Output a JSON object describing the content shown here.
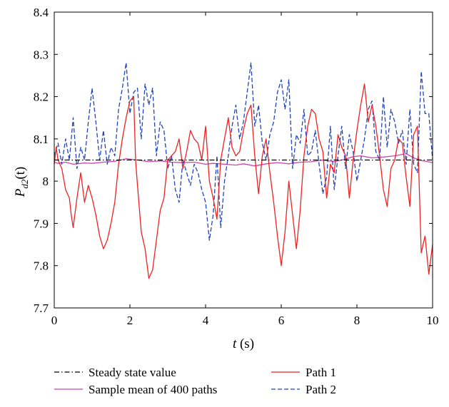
{
  "chart_data": {
    "type": "line",
    "xlabel": {
      "var": "t",
      "unit": " (s)"
    },
    "ylabel": {
      "var": "P",
      "sub": "d2",
      "arg": "(t)"
    },
    "xlim": [
      0,
      10
    ],
    "ylim": [
      7.7,
      8.4
    ],
    "xticks": [
      0,
      2,
      4,
      6,
      8,
      10
    ],
    "xtick_labels": [
      "0",
      "2",
      "4",
      "6",
      "8",
      "10"
    ],
    "yticks": [
      7.7,
      7.8,
      7.9,
      8.0,
      8.1,
      8.2,
      8.3,
      8.4
    ],
    "ytick_labels": [
      "7.7",
      "7.8",
      "7.9",
      "8",
      "8.1",
      "8.2",
      "8.3",
      "8.4"
    ],
    "grid": false,
    "legend_position": "below",
    "series": [
      {
        "name": "Steady state value",
        "style": "dashdot",
        "color": "#000000",
        "x": [
          0,
          10
        ],
        "y": [
          8.05,
          8.05
        ]
      },
      {
        "name": "Sample mean of 400 paths",
        "style": "solid",
        "color": "#cc44aa",
        "x": [
          0,
          0.1,
          0.3,
          0.5,
          0.8,
          1.0,
          1.3,
          1.6,
          1.9,
          2.2,
          2.5,
          2.8,
          3.1,
          3.4,
          3.7,
          4.0,
          4.2,
          4.5,
          4.8,
          5.0,
          5.3,
          5.6,
          5.9,
          6.2,
          6.5,
          6.8,
          7.1,
          7.4,
          7.7,
          7.9,
          8.1,
          8.4,
          8.7,
          9.0,
          9.3,
          9.5,
          9.7,
          10.0
        ],
        "y": [
          8.045,
          8.042,
          8.045,
          8.04,
          8.043,
          8.042,
          8.045,
          8.047,
          8.053,
          8.05,
          8.046,
          8.048,
          8.045,
          8.044,
          8.045,
          8.04,
          8.042,
          8.04,
          8.038,
          8.041,
          8.036,
          8.041,
          8.044,
          8.041,
          8.045,
          8.046,
          8.05,
          8.046,
          8.052,
          8.058,
          8.06,
          8.055,
          8.057,
          8.06,
          8.065,
          8.055,
          8.049,
          8.044
        ]
      },
      {
        "name": "Path 1",
        "style": "solid",
        "color": "#ee2222",
        "x": [
          0,
          0.05,
          0.1,
          0.2,
          0.3,
          0.4,
          0.45,
          0.5,
          0.6,
          0.7,
          0.8,
          0.9,
          1.0,
          1.1,
          1.2,
          1.3,
          1.4,
          1.5,
          1.6,
          1.7,
          1.8,
          1.9,
          2.0,
          2.1,
          2.15,
          2.2,
          2.3,
          2.4,
          2.5,
          2.6,
          2.7,
          2.8,
          2.9,
          3.0,
          3.1,
          3.2,
          3.3,
          3.4,
          3.5,
          3.6,
          3.7,
          3.8,
          3.9,
          4.0,
          4.1,
          4.2,
          4.3,
          4.4,
          4.5,
          4.6,
          4.7,
          4.8,
          4.9,
          5.0,
          5.1,
          5.2,
          5.3,
          5.4,
          5.5,
          5.6,
          5.7,
          5.8,
          5.9,
          6.0,
          6.1,
          6.2,
          6.3,
          6.4,
          6.5,
          6.6,
          6.7,
          6.8,
          6.9,
          7.0,
          7.1,
          7.2,
          7.3,
          7.4,
          7.5,
          7.6,
          7.7,
          7.8,
          7.9,
          8.0,
          8.1,
          8.2,
          8.3,
          8.4,
          8.5,
          8.6,
          8.7,
          8.8,
          8.9,
          9.0,
          9.1,
          9.2,
          9.3,
          9.4,
          9.5,
          9.6,
          9.7,
          9.8,
          9.9,
          10.0
        ],
        "y": [
          8.04,
          8.08,
          8.05,
          8.03,
          7.98,
          7.96,
          7.92,
          7.89,
          7.96,
          8.02,
          7.95,
          7.99,
          7.96,
          7.92,
          7.87,
          7.84,
          7.86,
          7.9,
          7.95,
          8.04,
          8.1,
          8.15,
          8.19,
          8.2,
          8.05,
          7.99,
          7.88,
          7.84,
          7.77,
          7.79,
          7.86,
          7.93,
          7.96,
          8.05,
          8.06,
          8.07,
          8.1,
          8.03,
          8.07,
          8.12,
          8.1,
          8.09,
          8.05,
          8.13,
          8.0,
          7.96,
          7.91,
          8.05,
          8.1,
          8.15,
          8.08,
          8.06,
          8.07,
          8.12,
          8.16,
          8.18,
          8.06,
          7.97,
          8.06,
          8.1,
          8.02,
          7.95,
          7.87,
          7.8,
          7.88,
          8.0,
          7.92,
          7.84,
          7.93,
          8.06,
          8.13,
          8.17,
          8.16,
          8.1,
          8.07,
          7.96,
          8.04,
          8.02,
          8.11,
          8.08,
          8.06,
          7.96,
          8.05,
          8.12,
          8.18,
          8.23,
          8.14,
          8.18,
          8.13,
          8.06,
          7.98,
          7.94,
          8.03,
          8.05,
          8.1,
          8.09,
          8.01,
          7.94,
          8.11,
          8.13,
          7.83,
          7.87,
          7.78,
          7.85
        ]
      },
      {
        "name": "Path 2",
        "style": "dashed",
        "color": "#2244bb",
        "x": [
          0,
          0.1,
          0.2,
          0.3,
          0.4,
          0.5,
          0.6,
          0.7,
          0.8,
          0.9,
          1.0,
          1.1,
          1.2,
          1.3,
          1.4,
          1.5,
          1.6,
          1.7,
          1.8,
          1.9,
          2.0,
          2.1,
          2.2,
          2.3,
          2.4,
          2.5,
          2.6,
          2.7,
          2.8,
          2.9,
          3.0,
          3.1,
          3.2,
          3.3,
          3.4,
          3.5,
          3.6,
          3.7,
          3.8,
          3.9,
          4.0,
          4.1,
          4.2,
          4.3,
          4.4,
          4.5,
          4.6,
          4.7,
          4.8,
          4.9,
          5.0,
          5.1,
          5.2,
          5.3,
          5.4,
          5.5,
          5.6,
          5.7,
          5.8,
          5.9,
          6.0,
          6.1,
          6.2,
          6.3,
          6.4,
          6.5,
          6.6,
          6.7,
          6.8,
          6.9,
          7.0,
          7.1,
          7.2,
          7.3,
          7.4,
          7.5,
          7.6,
          7.7,
          7.8,
          7.9,
          8.0,
          8.1,
          8.2,
          8.3,
          8.4,
          8.5,
          8.6,
          8.7,
          8.8,
          8.9,
          9.0,
          9.1,
          9.2,
          9.3,
          9.4,
          9.5,
          9.6,
          9.7,
          9.8,
          9.9,
          10.0
        ],
        "y": [
          8.06,
          8.09,
          8.04,
          8.1,
          8.05,
          8.15,
          8.03,
          8.08,
          8.05,
          8.14,
          8.22,
          8.14,
          8.05,
          8.12,
          8.04,
          8.08,
          8.06,
          8.17,
          8.22,
          8.28,
          8.16,
          8.21,
          8.22,
          8.1,
          8.23,
          8.18,
          8.22,
          8.06,
          8.14,
          8.12,
          8.03,
          8.06,
          7.98,
          7.95,
          8.05,
          8.02,
          7.99,
          8.04,
          8.02,
          7.98,
          7.95,
          7.86,
          7.92,
          8.06,
          7.89,
          8.0,
          8.06,
          8.13,
          8.18,
          8.1,
          8.14,
          8.21,
          8.28,
          8.13,
          8.18,
          8.09,
          8.05,
          8.11,
          8.14,
          8.21,
          8.24,
          8.17,
          8.24,
          8.03,
          8.11,
          8.09,
          8.17,
          8.06,
          8.07,
          8.12,
          8.04,
          7.97,
          8.01,
          8.13,
          7.98,
          8.06,
          8.13,
          8.03,
          8.11,
          8.07,
          8.0,
          8.05,
          8.1,
          8.17,
          8.19,
          8.07,
          8.05,
          8.2,
          8.08,
          8.17,
          8.14,
          8.09,
          8.12,
          8.04,
          8.17,
          8.04,
          8.02,
          8.26,
          8.16,
          8.16,
          8.05
        ]
      }
    ]
  }
}
